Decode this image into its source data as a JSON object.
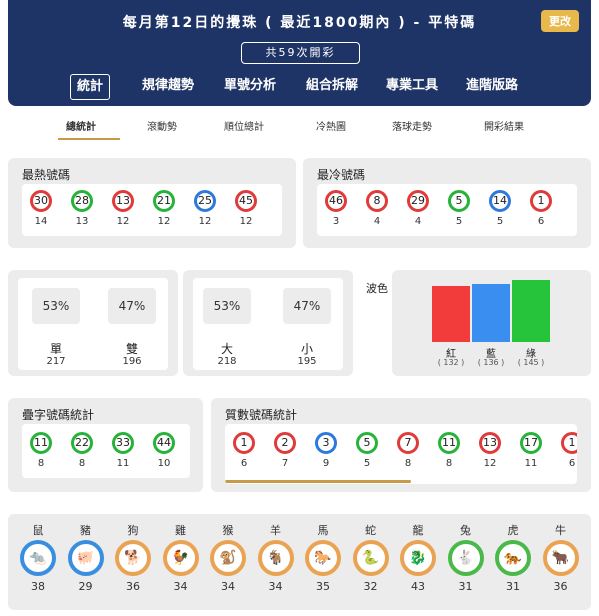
{
  "header": {
    "title": "每月第12日的攪珠 ( 最近1800期內 ) - 平特碼",
    "change_label": "更改",
    "draws_label": "共59次開彩"
  },
  "nav": {
    "items": [
      "統計",
      "規律趨勢",
      "單號分析",
      "組合拆解",
      "專業工具",
      "進階版路"
    ]
  },
  "subtabs": {
    "items": [
      "總統計",
      "滾動勢",
      "順位總計",
      "冷熱圖",
      "落球走勢",
      "開彩結果"
    ]
  },
  "hottest": {
    "title": "最熱號碼",
    "balls": [
      {
        "num": "30",
        "color": "red",
        "count": "14"
      },
      {
        "num": "28",
        "color": "green",
        "count": "13"
      },
      {
        "num": "13",
        "color": "red",
        "count": "12"
      },
      {
        "num": "21",
        "color": "green",
        "count": "12"
      },
      {
        "num": "25",
        "color": "blue",
        "count": "12"
      },
      {
        "num": "45",
        "color": "red",
        "count": "12"
      }
    ]
  },
  "coldest": {
    "title": "最冷號碼",
    "balls": [
      {
        "num": "46",
        "color": "red",
        "count": "3"
      },
      {
        "num": "8",
        "color": "red",
        "count": "4"
      },
      {
        "num": "29",
        "color": "red",
        "count": "4"
      },
      {
        "num": "5",
        "color": "green",
        "count": "5"
      },
      {
        "num": "14",
        "color": "blue",
        "count": "5"
      },
      {
        "num": "1",
        "color": "red",
        "count": "6"
      }
    ]
  },
  "odd_even": {
    "odd": {
      "pct": "53%",
      "label": "單",
      "count": "217"
    },
    "even": {
      "pct": "47%",
      "label": "雙",
      "count": "196"
    }
  },
  "big_small": {
    "big": {
      "pct": "53%",
      "label": "大",
      "count": "218"
    },
    "small": {
      "pct": "47%",
      "label": "小",
      "count": "195"
    }
  },
  "wave": {
    "title": "波色",
    "bars": [
      {
        "label": "紅",
        "count": "( 132 )",
        "value": 132,
        "color": "#f23b3b"
      },
      {
        "label": "藍",
        "count": "( 136 )",
        "value": 136,
        "color": "#3a8ef0"
      },
      {
        "label": "綠",
        "count": "( 145 )",
        "value": 145,
        "color": "#26c43a"
      }
    ]
  },
  "repeat_digits": {
    "title": "疊字號碼統計",
    "balls": [
      {
        "num": "11",
        "color": "green",
        "count": "8"
      },
      {
        "num": "22",
        "color": "green",
        "count": "8"
      },
      {
        "num": "33",
        "color": "green",
        "count": "11"
      },
      {
        "num": "44",
        "color": "green",
        "count": "10"
      }
    ]
  },
  "primes": {
    "title": "質數號碼統計",
    "balls": [
      {
        "num": "1",
        "color": "red",
        "count": "6"
      },
      {
        "num": "2",
        "color": "red",
        "count": "7"
      },
      {
        "num": "3",
        "color": "blue",
        "count": "9"
      },
      {
        "num": "5",
        "color": "green",
        "count": "5"
      },
      {
        "num": "7",
        "color": "red",
        "count": "8"
      },
      {
        "num": "11",
        "color": "green",
        "count": "8"
      },
      {
        "num": "13",
        "color": "red",
        "count": "12"
      },
      {
        "num": "17",
        "color": "green",
        "count": "11"
      },
      {
        "num": "1",
        "color": "red",
        "count": "6"
      }
    ]
  },
  "zodiac": {
    "items": [
      {
        "name": "鼠",
        "count": "38",
        "color": "blue",
        "icon": "rat-icon",
        "glyph": "🐀"
      },
      {
        "name": "豬",
        "count": "29",
        "color": "blue",
        "icon": "pig-icon",
        "glyph": "🐖"
      },
      {
        "name": "狗",
        "count": "36",
        "color": "orange",
        "icon": "dog-icon",
        "glyph": "🐕"
      },
      {
        "name": "雞",
        "count": "34",
        "color": "orange",
        "icon": "rooster-icon",
        "glyph": "🐓"
      },
      {
        "name": "猴",
        "count": "34",
        "color": "orange",
        "icon": "monkey-icon",
        "glyph": "🐒"
      },
      {
        "name": "羊",
        "count": "34",
        "color": "orange",
        "icon": "goat-icon",
        "glyph": "🐐"
      },
      {
        "name": "馬",
        "count": "35",
        "color": "orange",
        "icon": "horse-icon",
        "glyph": "🐎"
      },
      {
        "name": "蛇",
        "count": "32",
        "color": "orange",
        "icon": "snake-icon",
        "glyph": "🐍"
      },
      {
        "name": "龍",
        "count": "43",
        "color": "orange",
        "icon": "dragon-icon",
        "glyph": "🐉"
      },
      {
        "name": "兔",
        "count": "31",
        "color": "green",
        "icon": "rabbit-icon",
        "glyph": "🐇"
      },
      {
        "name": "虎",
        "count": "31",
        "color": "green",
        "icon": "tiger-icon",
        "glyph": "🐅"
      },
      {
        "name": "牛",
        "count": "36",
        "color": "orange",
        "icon": "ox-icon",
        "glyph": "🐂"
      }
    ]
  }
}
